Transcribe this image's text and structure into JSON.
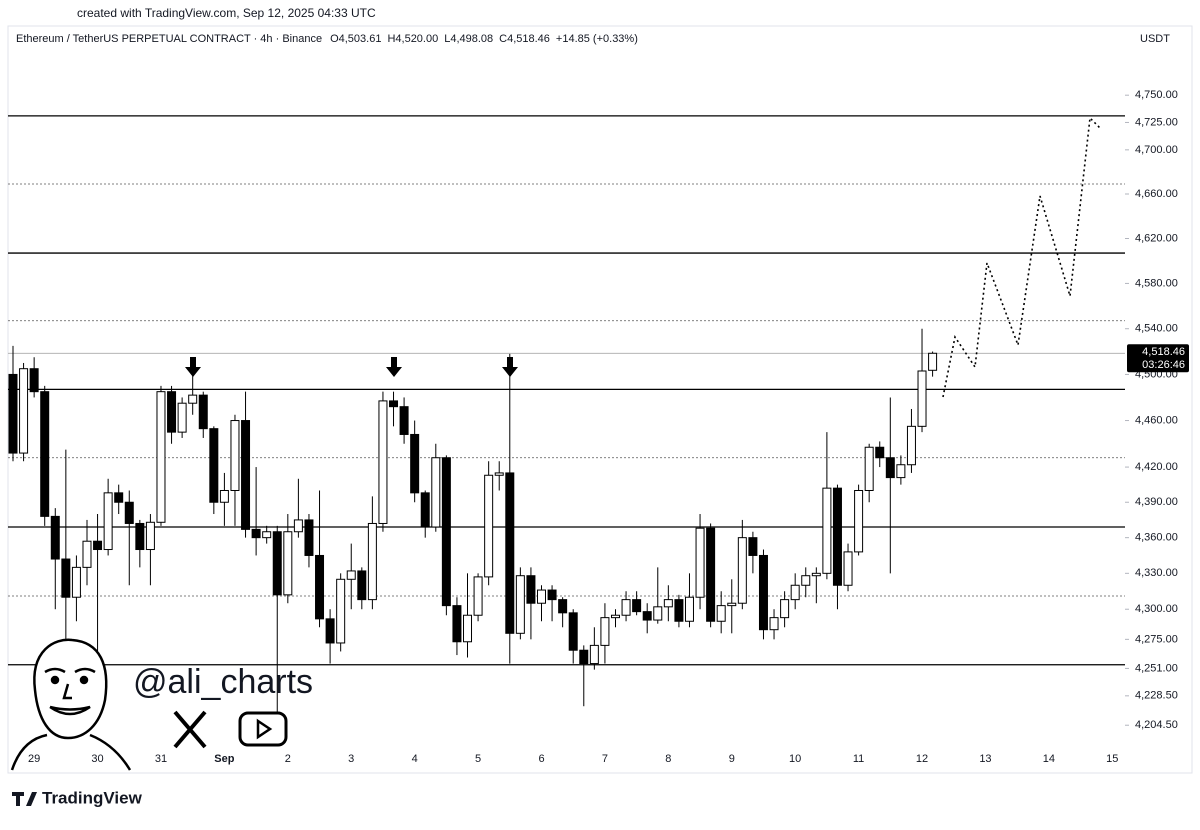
{
  "header": "created with TradingView.com, Sep 12, 2025 04:33 UTC",
  "footer_logo": "TradingView",
  "watermark": "@ali_charts",
  "chart_data": {
    "type": "candlestick",
    "title": "Ethereum / TetherUS PERPETUAL CONTRACT · 4h · Binance",
    "ohlc_labels": [
      "O4,503.61",
      "H4,520.00",
      "L4,498.08",
      "C4,518.46",
      "+14.85 (+0.33%)"
    ],
    "currency": "USDT",
    "log_scale": true,
    "ylim": [
      4186,
      4815
    ],
    "yticks": [
      {
        "value": 4750,
        "label": "4,750.00"
      },
      {
        "value": 4725,
        "label": "4,725.00"
      },
      {
        "value": 4700,
        "label": "4,700.00"
      },
      {
        "value": 4660,
        "label": "4,660.00"
      },
      {
        "value": 4620,
        "label": "4,620.00"
      },
      {
        "value": 4580,
        "label": "4,580.00"
      },
      {
        "value": 4540,
        "label": "4,540.00"
      },
      {
        "value": 4500,
        "label": "4,500.00"
      },
      {
        "value": 4460,
        "label": "4,460.00"
      },
      {
        "value": 4420,
        "label": "4,420.00"
      },
      {
        "value": 4390,
        "label": "4,390.00"
      },
      {
        "value": 4360,
        "label": "4,360.00"
      },
      {
        "value": 4330,
        "label": "4,330.00"
      },
      {
        "value": 4300,
        "label": "4,300.00"
      },
      {
        "value": 4275,
        "label": "4,275.00"
      },
      {
        "value": 4251,
        "label": "4,251.00"
      },
      {
        "value": 4228.5,
        "label": "4,228.50"
      },
      {
        "value": 4204.5,
        "label": "4,204.50"
      }
    ],
    "xtick_labels": [
      "29",
      "30",
      "31",
      "Sep",
      "2",
      "3",
      "4",
      "5",
      "6",
      "7",
      "8",
      "9",
      "10",
      "11",
      "12",
      "13",
      "14",
      "15"
    ],
    "open": [
      4500,
      4432,
      4505,
      4485,
      4378,
      4342,
      4310,
      4335,
      4357,
      4350,
      4398,
      4390,
      4372,
      4350,
      4373,
      4485,
      4450,
      4475,
      4482,
      4453,
      4390,
      4400,
      4460,
      4367,
      4360,
      4365,
      4312,
      4365,
      4375,
      4345,
      4292,
      4272,
      4325,
      4332,
      4308,
      4372,
      4477,
      4472,
      4448,
      4398,
      4369,
      4428,
      4303,
      4273,
      4295,
      4327,
      4413,
      4415,
      4280,
      4328,
      4305,
      4316,
      4308,
      4297,
      4266,
      4255,
      4270,
      4293,
      4295,
      4308,
      4298,
      4291,
      4302,
      4308,
      4290,
      4310,
      4368,
      4290,
      4303,
      4305,
      4360,
      4345,
      4283,
      4293,
      4308,
      4320,
      4328,
      4330,
      4402,
      4320,
      4348,
      4400,
      4437,
      4428,
      4411,
      4422,
      4455,
      4503.61
    ],
    "high": [
      4525,
      4510,
      4515,
      4490,
      4385,
      4435,
      4345,
      4375,
      4380,
      4410,
      4405,
      4400,
      4375,
      4380,
      4490,
      4490,
      4480,
      4500,
      4485,
      4455,
      4415,
      4465,
      4485,
      4420,
      4370,
      4370,
      4380,
      4410,
      4380,
      4400,
      4300,
      4330,
      4355,
      4335,
      4395,
      4485,
      4485,
      4480,
      4460,
      4400,
      4440,
      4430,
      4310,
      4330,
      4330,
      4425,
      4425,
      4518,
      4335,
      4335,
      4320,
      4320,
      4310,
      4300,
      4270,
      4285,
      4305,
      4300,
      4315,
      4315,
      4305,
      4335,
      4320,
      4312,
      4330,
      4380,
      4372,
      4315,
      4325,
      4375,
      4365,
      4350,
      4300,
      4315,
      4330,
      4335,
      4335,
      4450,
      4405,
      4355,
      4405,
      4440,
      4442,
      4480,
      4430,
      4470,
      4540,
      4520
    ],
    "low": [
      4425,
      4425,
      4480,
      4370,
      4300,
      4275,
      4290,
      4320,
      4250,
      4345,
      4380,
      4320,
      4335,
      4320,
      4370,
      4440,
      4445,
      4465,
      4445,
      4380,
      4370,
      4370,
      4360,
      4345,
      4355,
      4215,
      4305,
      4360,
      4335,
      4285,
      4255,
      4265,
      4300,
      4300,
      4300,
      4365,
      4455,
      4440,
      4390,
      4360,
      4365,
      4295,
      4262,
      4260,
      4290,
      4320,
      4400,
      4255,
      4275,
      4275,
      4290,
      4290,
      4285,
      4255,
      4220,
      4250,
      4255,
      4285,
      4290,
      4295,
      4280,
      4288,
      4290,
      4285,
      4285,
      4300,
      4285,
      4280,
      4280,
      4300,
      4330,
      4275,
      4275,
      4285,
      4300,
      4310,
      4305,
      4325,
      4300,
      4315,
      4345,
      4390,
      4420,
      4330,
      4405,
      4415,
      4450,
      4498.08
    ],
    "close": [
      4432,
      4505,
      4485,
      4378,
      4342,
      4310,
      4335,
      4357,
      4350,
      4398,
      4390,
      4372,
      4350,
      4373,
      4485,
      4450,
      4475,
      4482,
      4453,
      4390,
      4400,
      4460,
      4367,
      4360,
      4365,
      4312,
      4365,
      4375,
      4345,
      4292,
      4272,
      4325,
      4332,
      4308,
      4372,
      4477,
      4472,
      4448,
      4398,
      4369,
      4428,
      4303,
      4273,
      4295,
      4327,
      4413,
      4415,
      4280,
      4328,
      4305,
      4316,
      4308,
      4297,
      4266,
      4255,
      4270,
      4293,
      4295,
      4308,
      4298,
      4291,
      4302,
      4308,
      4290,
      4310,
      4368,
      4290,
      4303,
      4305,
      4360,
      4345,
      4283,
      4293,
      4308,
      4320,
      4328,
      4330,
      4402,
      4320,
      4348,
      4400,
      4437,
      4428,
      4411,
      4422,
      4455,
      4503,
      4518.46
    ],
    "up_color": "#ffffff",
    "down_color": "#000000",
    "border_color": "#000000",
    "levels": [
      {
        "value": 4731,
        "style": "solid"
      },
      {
        "value": 4669,
        "style": "dotted"
      },
      {
        "value": 4607,
        "style": "solid"
      },
      {
        "value": 4547,
        "style": "dotted"
      },
      {
        "value": 4487,
        "style": "solid"
      },
      {
        "value": 4428,
        "style": "dotted"
      },
      {
        "value": 4369,
        "style": "solid"
      },
      {
        "value": 4311,
        "style": "dotted"
      },
      {
        "value": 4254,
        "style": "solid"
      }
    ],
    "last_price": 4518.46,
    "last_price_label": "4,518.46",
    "countdown": "03:26:46"
  }
}
